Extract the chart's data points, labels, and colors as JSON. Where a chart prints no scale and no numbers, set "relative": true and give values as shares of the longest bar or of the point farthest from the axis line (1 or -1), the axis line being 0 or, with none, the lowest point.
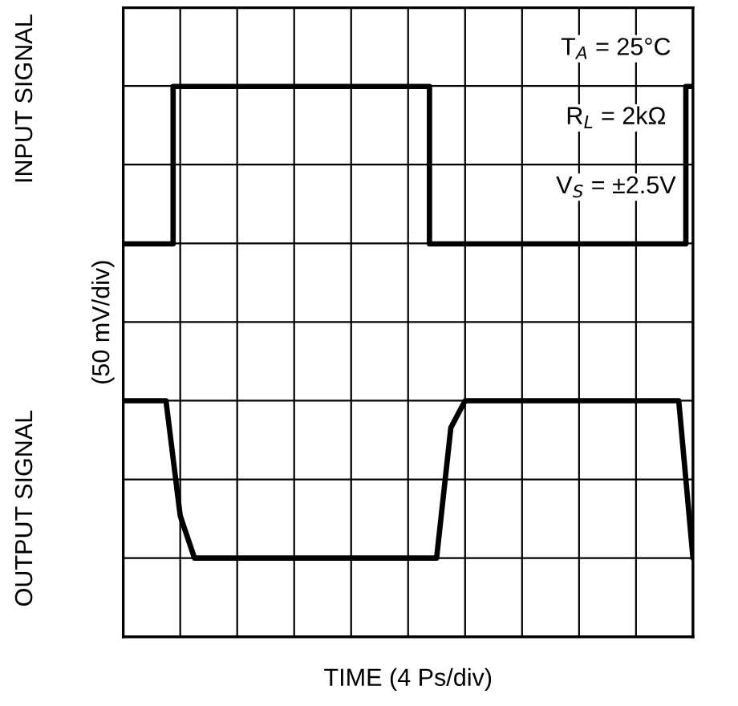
{
  "chart_data": {
    "type": "line",
    "relative": true,
    "ylabel": "(50 mV/div)",
    "xlabel": "TIME (4 Ps/div)",
    "annotations": [
      "INPUT SIGNAL",
      "OUTPUT SIGNAL",
      "T$_{A}$ = 25°C",
      "R$_{L}$ = 2kΩ",
      "V$_{S}$ = ±2.5V"
    ],
    "categories": [
      null,
      null,
      null,
      null,
      null,
      null,
      null,
      null,
      null,
      null,
      null,
      null,
      null,
      null,
      null,
      null,
      null,
      null,
      null,
      null,
      null,
      null,
      null,
      null,
      null,
      null,
      null,
      null,
      null,
      null,
      null,
      null,
      null,
      null,
      null,
      null,
      null,
      null,
      null,
      null,
      null
    ],
    "series": [
      {
        "type": "step",
        "color": "#000000",
        "values": [
          0.714,
          0.714,
          0.714,
          0.714,
          1,
          1,
          1,
          1,
          1,
          1,
          1,
          1,
          1,
          1,
          1,
          1,
          1,
          1,
          1,
          1,
          1,
          1,
          0.714,
          0.714,
          0.714,
          0.714,
          0.714,
          0.714,
          0.714,
          0.714,
          0.714,
          0.714,
          0.714,
          0.714,
          0.714,
          0.714,
          0.714,
          0.714,
          0.714,
          0.714,
          1
        ]
      },
      {
        "color": "#000000",
        "values": [
          0.429,
          0.429,
          0.429,
          0.429,
          0.22,
          0.143,
          0.143,
          0.143,
          0.143,
          0.143,
          0.143,
          0.143,
          0.143,
          0.143,
          0.143,
          0.143,
          0.143,
          0.143,
          0.143,
          0.143,
          0.143,
          0.143,
          0.143,
          0.38,
          0.429,
          0.429,
          0.429,
          0.429,
          0.429,
          0.429,
          0.429,
          0.429,
          0.429,
          0.429,
          0.429,
          0.429,
          0.429,
          0.429,
          0.429,
          0.429,
          0.143
        ]
      }
    ],
    "grid": true,
    "legend": false,
    "tick_labels": false,
    "marker": "none",
    "line_style": "solid"
  }
}
